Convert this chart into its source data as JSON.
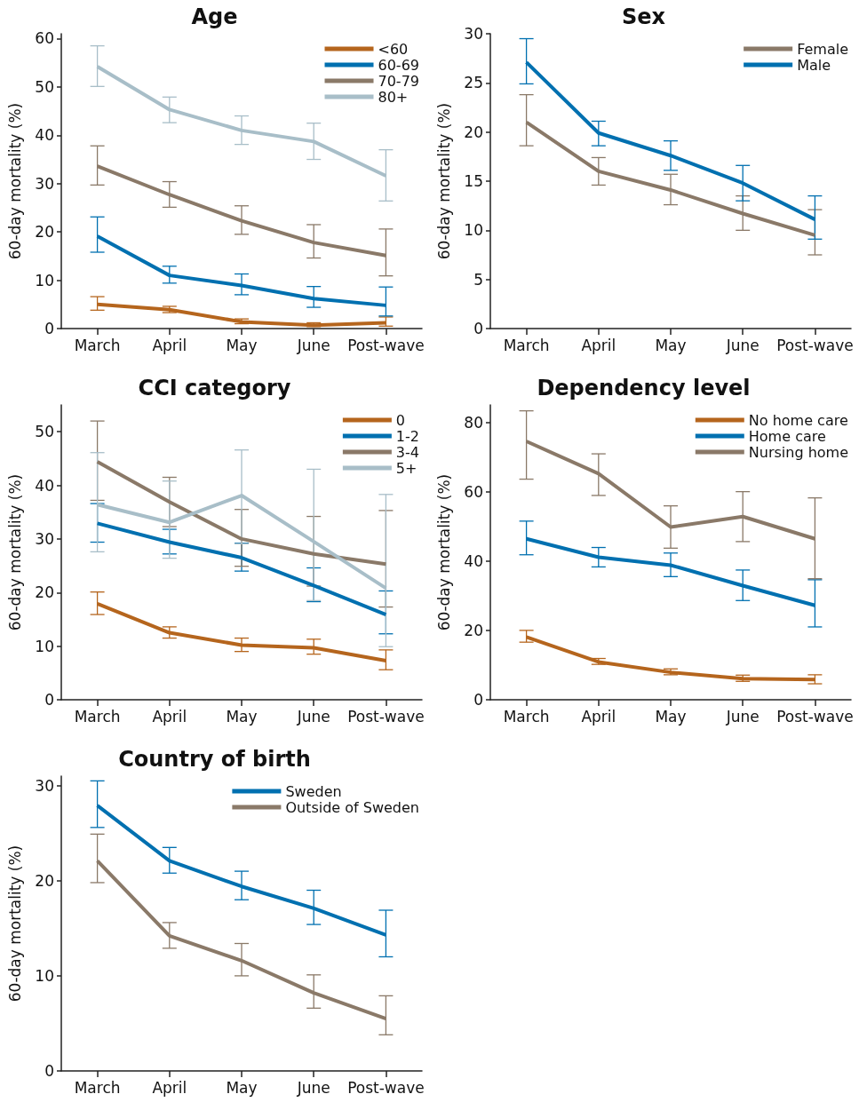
{
  "chart_data": [
    {
      "type": "line",
      "title": "Age",
      "ylabel": "60-day mortality (%)",
      "categories": [
        "March",
        "April",
        "May",
        "June",
        "Post-wave"
      ],
      "ylim": [
        0,
        61
      ],
      "yticks": [
        0,
        10,
        20,
        30,
        40,
        50,
        60
      ],
      "grid": false,
      "legend": "top right",
      "marker": "none",
      "line_style": "solid",
      "series": [
        {
          "name": "<60",
          "color": "#b5651d",
          "values": [
            5.0,
            3.9,
            1.4,
            0.7,
            1.2
          ],
          "errors": [
            [
              3.8,
              6.6
            ],
            [
              3.3,
              4.6
            ],
            [
              1.0,
              2.0
            ],
            [
              0.4,
              1.2
            ],
            [
              0.5,
              2.4
            ]
          ]
        },
        {
          "name": "60-69",
          "color": "#0070b0",
          "values": [
            19.1,
            11.0,
            8.9,
            6.2,
            4.8
          ],
          "errors": [
            [
              15.8,
              23.1
            ],
            [
              9.4,
              12.9
            ],
            [
              7.0,
              11.3
            ],
            [
              4.4,
              8.7
            ],
            [
              2.6,
              8.6
            ]
          ]
        },
        {
          "name": "70-79",
          "color": "#8a7968",
          "values": [
            33.6,
            27.7,
            22.3,
            17.8,
            15.1
          ],
          "errors": [
            [
              29.7,
              37.8
            ],
            [
              25.1,
              30.4
            ],
            [
              19.5,
              25.4
            ],
            [
              14.6,
              21.5
            ],
            [
              10.9,
              20.6
            ]
          ]
        },
        {
          "name": "80+",
          "color": "#a8bec8",
          "values": [
            54.2,
            45.3,
            41.0,
            38.7,
            31.6
          ],
          "errors": [
            [
              50.1,
              58.5
            ],
            [
              42.6,
              47.9
            ],
            [
              38.1,
              44.0
            ],
            [
              35.0,
              42.5
            ],
            [
              26.4,
              37.0
            ]
          ]
        }
      ]
    },
    {
      "type": "line",
      "title": "Sex",
      "ylabel": "60-day mortality (%)",
      "categories": [
        "March",
        "April",
        "May",
        "June",
        "Post-wave"
      ],
      "ylim": [
        0,
        30
      ],
      "yticks": [
        0,
        5,
        10,
        15,
        20,
        25,
        30
      ],
      "grid": false,
      "legend": "top right",
      "marker": "none",
      "line_style": "solid",
      "series": [
        {
          "name": "Female",
          "color": "#8a7968",
          "values": [
            21.0,
            16.0,
            14.1,
            11.7,
            9.5
          ],
          "errors": [
            [
              18.6,
              23.8
            ],
            [
              14.6,
              17.4
            ],
            [
              12.6,
              15.7
            ],
            [
              10.0,
              13.5
            ],
            [
              7.5,
              12.1
            ]
          ]
        },
        {
          "name": "Male",
          "color": "#0070b0",
          "values": [
            27.1,
            19.9,
            17.6,
            14.8,
            11.1
          ],
          "errors": [
            [
              24.9,
              29.5
            ],
            [
              18.6,
              21.1
            ],
            [
              16.1,
              19.1
            ],
            [
              13.0,
              16.6
            ],
            [
              9.1,
              13.5
            ]
          ]
        }
      ]
    },
    {
      "type": "line",
      "title": "CCI category",
      "ylabel": "60-day mortality (%)",
      "categories": [
        "March",
        "April",
        "May",
        "June",
        "Post-wave"
      ],
      "ylim": [
        0,
        55
      ],
      "yticks": [
        0,
        10,
        20,
        30,
        40,
        50
      ],
      "grid": false,
      "legend": "top right",
      "marker": "none",
      "line_style": "solid",
      "series": [
        {
          "name": "0",
          "color": "#b5651d",
          "values": [
            17.9,
            12.5,
            10.2,
            9.7,
            7.3
          ],
          "errors": [
            [
              15.9,
              20.1
            ],
            [
              11.5,
              13.6
            ],
            [
              9.0,
              11.5
            ],
            [
              8.5,
              11.3
            ],
            [
              5.6,
              9.3
            ]
          ]
        },
        {
          "name": "1-2",
          "color": "#0070b0",
          "values": [
            32.9,
            29.4,
            26.5,
            21.3,
            15.9
          ],
          "errors": [
            [
              29.4,
              36.6
            ],
            [
              27.2,
              31.8
            ],
            [
              24.0,
              29.2
            ],
            [
              18.3,
              24.6
            ],
            [
              12.3,
              20.3
            ]
          ]
        },
        {
          "name": "3-4",
          "color": "#8a7968",
          "values": [
            44.4,
            36.9,
            30.0,
            27.2,
            25.3
          ],
          "errors": [
            [
              37.2,
              52.0
            ],
            [
              32.3,
              41.5
            ],
            [
              24.9,
              35.5
            ],
            [
              21.2,
              34.2
            ],
            [
              17.3,
              35.3
            ]
          ]
        },
        {
          "name": "5+",
          "color": "#a8bec8",
          "values": [
            36.4,
            33.1,
            38.1,
            29.5,
            20.8
          ],
          "errors": [
            [
              27.6,
              46.1
            ],
            [
              26.4,
              40.8
            ],
            [
              29.1,
              46.6
            ],
            [
              18.5,
              43.0
            ],
            [
              9.9,
              38.3
            ]
          ]
        }
      ]
    },
    {
      "type": "line",
      "title": "Dependency level",
      "ylabel": "60-day mortality (%)",
      "categories": [
        "March",
        "April",
        "May",
        "June",
        "Post-wave"
      ],
      "ylim": [
        0,
        85
      ],
      "yticks": [
        0,
        20,
        40,
        60,
        80
      ],
      "grid": false,
      "legend": "top right",
      "marker": "none",
      "line_style": "solid",
      "series": [
        {
          "name": "No home care",
          "color": "#b5651d",
          "values": [
            18.1,
            10.9,
            7.9,
            6.1,
            5.8
          ],
          "errors": [
            [
              16.6,
              20.0
            ],
            [
              10.2,
              11.9
            ],
            [
              7.2,
              8.9
            ],
            [
              5.3,
              7.1
            ],
            [
              4.6,
              7.2
            ]
          ]
        },
        {
          "name": "Home care",
          "color": "#0070b0",
          "values": [
            46.4,
            41.1,
            38.8,
            32.9,
            27.2
          ],
          "errors": [
            [
              41.8,
              51.5
            ],
            [
              38.3,
              43.9
            ],
            [
              35.5,
              42.3
            ],
            [
              28.6,
              37.4
            ],
            [
              21.0,
              34.6
            ]
          ]
        },
        {
          "name": "Nursing home",
          "color": "#8a7968",
          "values": [
            74.5,
            65.2,
            49.8,
            52.8,
            46.4
          ],
          "errors": [
            [
              63.6,
              83.3
            ],
            [
              58.9,
              70.9
            ],
            [
              43.7,
              55.9
            ],
            [
              45.6,
              60.0
            ],
            [
              34.9,
              58.2
            ]
          ]
        }
      ]
    },
    {
      "type": "line",
      "title": "Country of birth",
      "ylabel": "60-day mortality (%)",
      "categories": [
        "March",
        "April",
        "May",
        "June",
        "Post-wave"
      ],
      "ylim": [
        0,
        31
      ],
      "yticks": [
        0,
        10,
        20,
        30
      ],
      "grid": false,
      "legend": "top right",
      "marker": "none",
      "line_style": "solid",
      "series": [
        {
          "name": "Sweden",
          "color": "#0070b0",
          "values": [
            27.9,
            22.1,
            19.4,
            17.1,
            14.3
          ],
          "errors": [
            [
              25.6,
              30.5
            ],
            [
              20.8,
              23.5
            ],
            [
              18.0,
              21.0
            ],
            [
              15.4,
              19.0
            ],
            [
              12.0,
              16.9
            ]
          ]
        },
        {
          "name": "Outside of Sweden",
          "color": "#8a7968",
          "values": [
            22.1,
            14.2,
            11.6,
            8.2,
            5.5
          ],
          "errors": [
            [
              19.8,
              24.9
            ],
            [
              12.9,
              15.6
            ],
            [
              10.0,
              13.4
            ],
            [
              6.6,
              10.1
            ],
            [
              3.8,
              7.9
            ]
          ]
        }
      ]
    }
  ]
}
